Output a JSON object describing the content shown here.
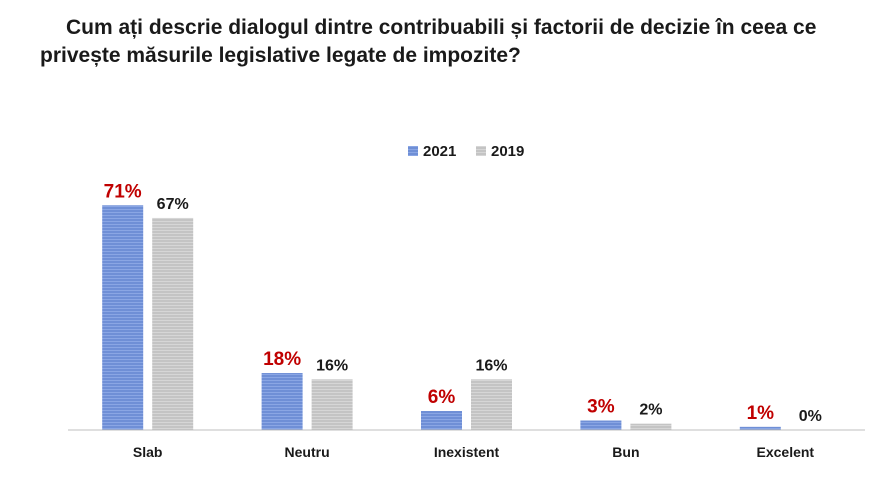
{
  "chart_data": {
    "type": "bar",
    "title_line1": "Cum ați descrie dialogul dintre contribuabili și factorii de decizie în ceea ce",
    "title_line2": "privește măsurile legislative legate de impozite?",
    "categories": [
      "Slab",
      "Neutru",
      "Inexistent",
      "Bun",
      "Excelent"
    ],
    "series": [
      {
        "name": "2021",
        "values": [
          71,
          18,
          6,
          3,
          1
        ],
        "labels": [
          "71%",
          "18%",
          "6%",
          "3%",
          "1%"
        ],
        "color": "#6f8fd6",
        "label_color": "#c00000"
      },
      {
        "name": "2019",
        "values": [
          67,
          16,
          16,
          2,
          0
        ],
        "labels": [
          "67%",
          "16%",
          "16%",
          "2%",
          "0%"
        ],
        "color": "#c9c9c9",
        "label_color": "#1a1a1a"
      }
    ],
    "ylim": [
      0,
      75
    ],
    "legend_position": "top-center",
    "grid": false
  }
}
